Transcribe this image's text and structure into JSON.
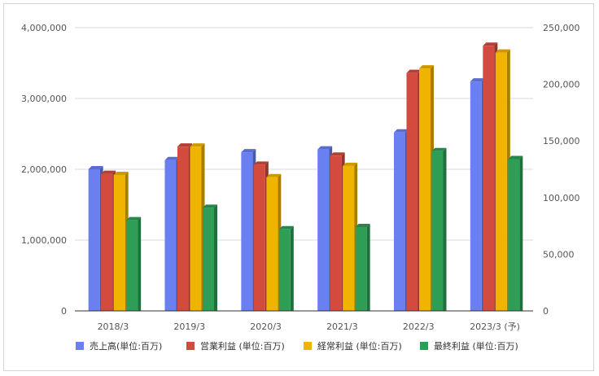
{
  "chart_data": {
    "type": "bar",
    "title": "",
    "categories": [
      "2018/3",
      "2019/3",
      "2020/3",
      "2021/3",
      "2022/3",
      "2023/3 (予)"
    ],
    "left_axis": {
      "min": 0,
      "max": 4000000,
      "ticks": [
        "0",
        "1,000,000",
        "2,000,000",
        "3,000,000",
        "4,000,000"
      ]
    },
    "right_axis": {
      "min": 0,
      "max": 250000,
      "ticks": [
        "0",
        "50,000",
        "100,000",
        "150,000",
        "200,000",
        "250,000"
      ]
    },
    "grid": true,
    "legend_position": "bottom",
    "series": [
      {
        "name": "売上高(単位:百万)",
        "axis": "left",
        "color": "#6a7ff0",
        "values": [
          2000000,
          2130000,
          2240000,
          2280000,
          2520000,
          3240000
        ]
      },
      {
        "name": "営業利益 (単位:百万)",
        "axis": "right",
        "color": "#d24b3e",
        "values": [
          121000,
          145000,
          129000,
          137000,
          210000,
          234000
        ]
      },
      {
        "name": "経常利益 (単位:百万)",
        "axis": "right",
        "color": "#f0b400",
        "values": [
          120000,
          145000,
          118000,
          128000,
          214000,
          228000
        ]
      },
      {
        "name": "最終利益 (単位:百万)",
        "axis": "right",
        "color": "#2e9e57",
        "values": [
          80000,
          91000,
          72000,
          74000,
          141000,
          134000
        ]
      }
    ]
  }
}
